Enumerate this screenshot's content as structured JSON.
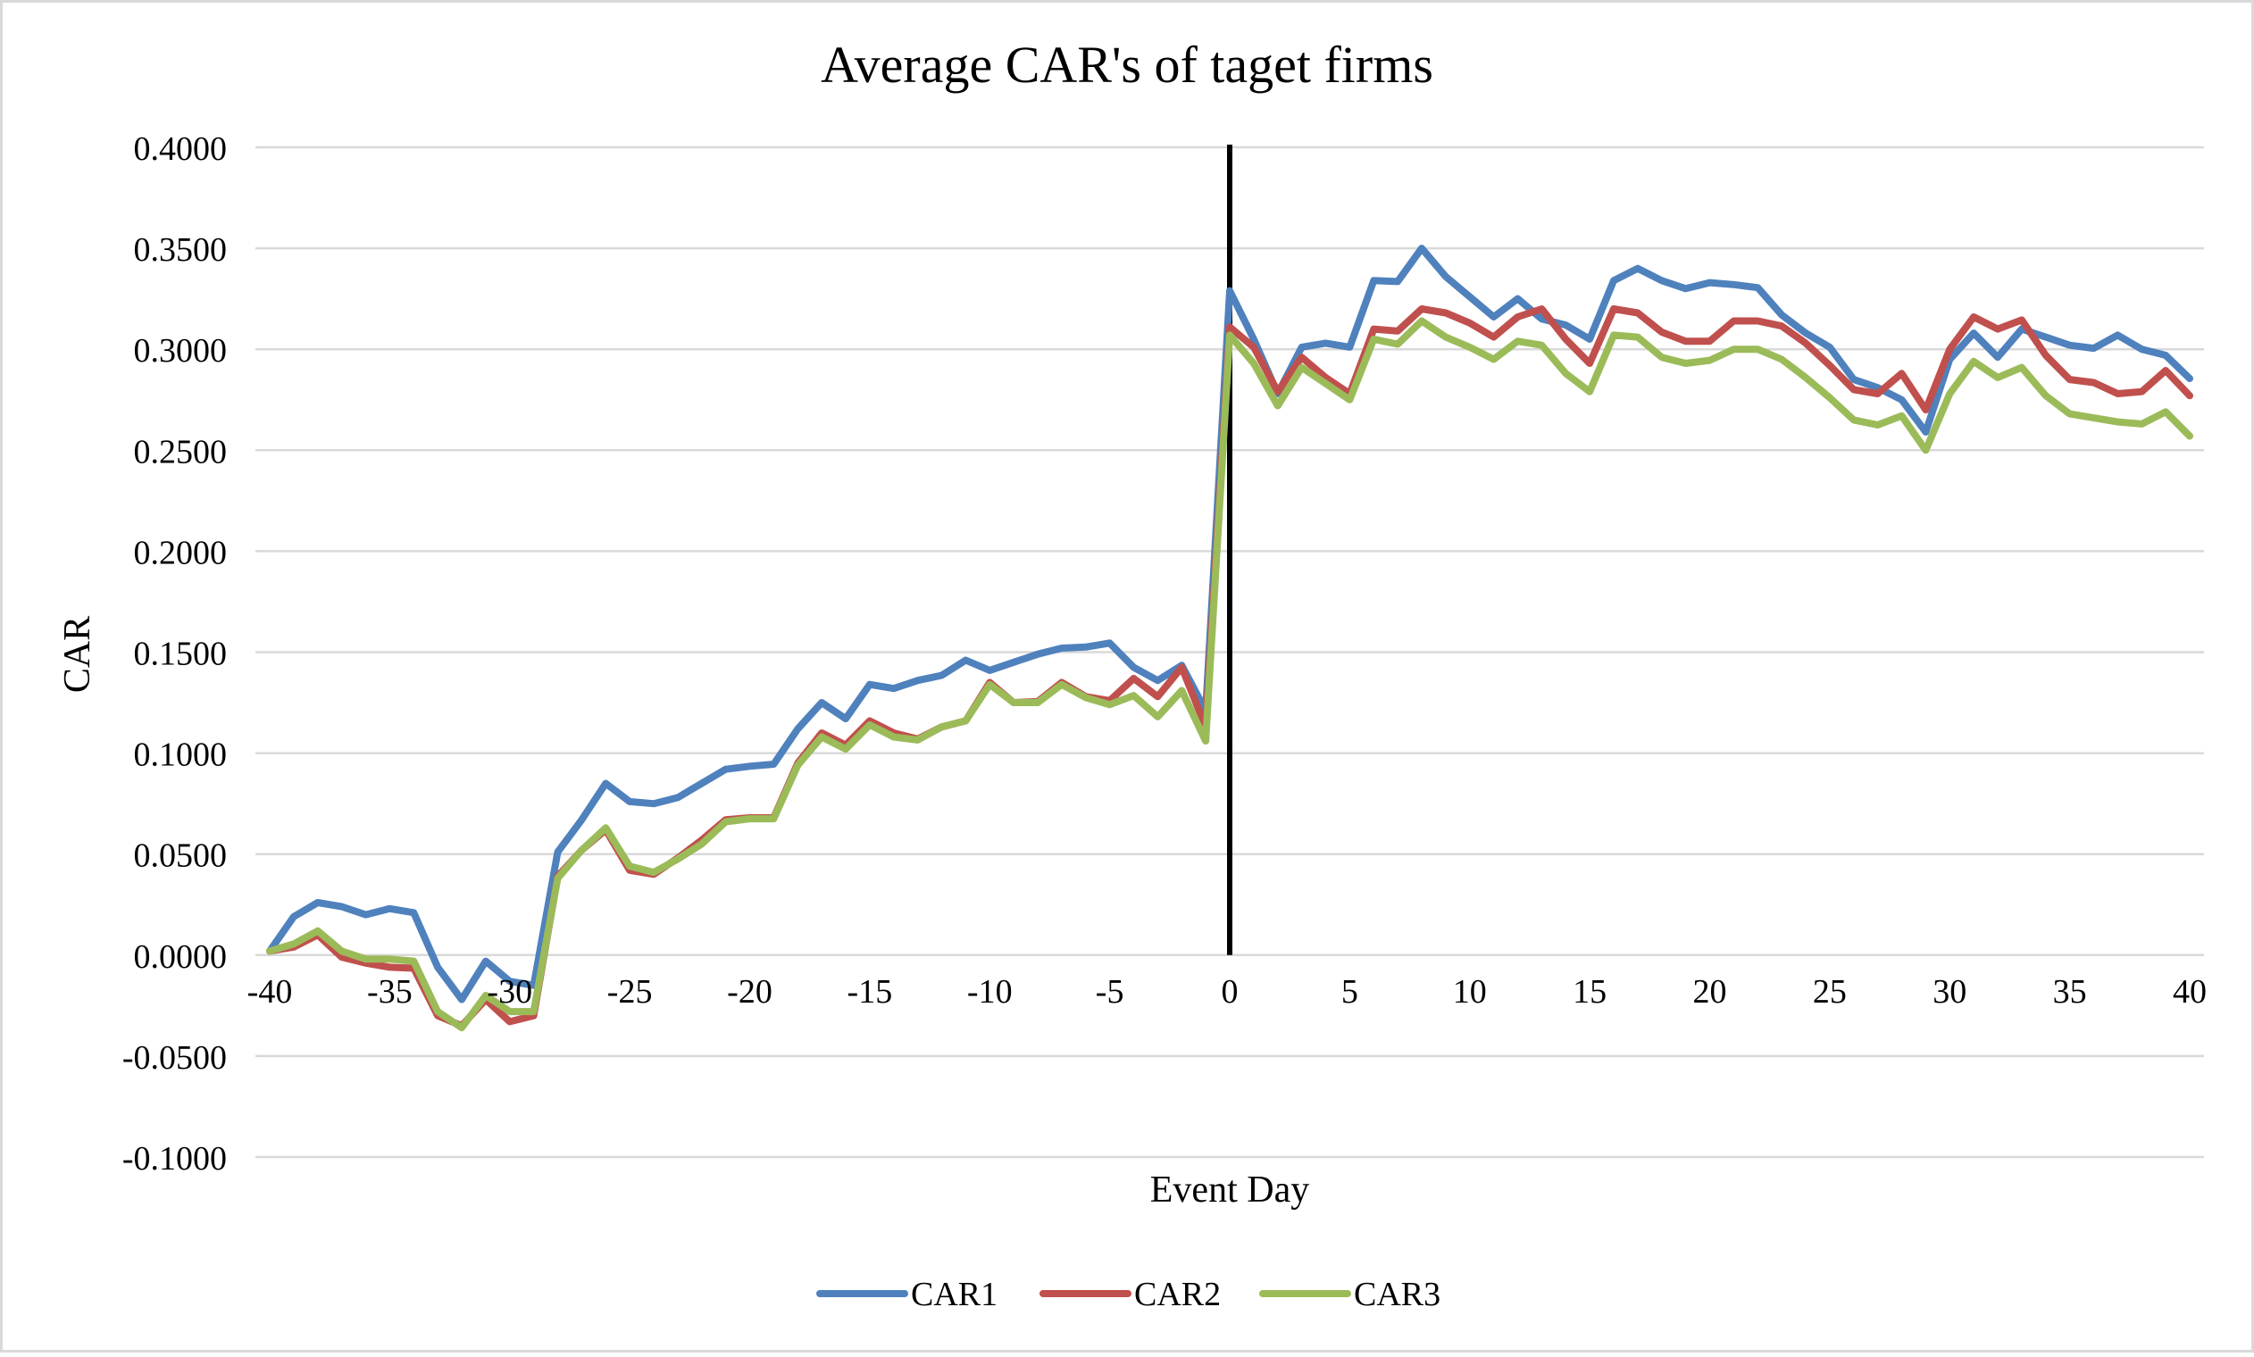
{
  "chart_data": {
    "type": "line",
    "title": "Average CAR's of taget firms",
    "xlabel": "Event Day",
    "ylabel": "CAR",
    "xlim": [
      -40,
      40
    ],
    "ylim": [
      -0.1,
      0.4
    ],
    "x_ticks": [
      -40,
      -35,
      -30,
      -25,
      -20,
      -15,
      -10,
      -5,
      0,
      5,
      10,
      15,
      20,
      25,
      30,
      35,
      40
    ],
    "x_tick_labels": [
      "-40",
      "-35",
      "-30",
      "-25",
      "-20",
      "-15",
      "-10",
      "-5",
      "0",
      "5",
      "10",
      "15",
      "20",
      "25",
      "30",
      "35",
      "40"
    ],
    "y_ticks": [
      0.4,
      0.35,
      0.3,
      0.25,
      0.2,
      0.15,
      0.1,
      0.05,
      0.0,
      -0.05,
      -0.1
    ],
    "y_tick_labels": [
      "0.4000",
      "0.3500",
      "0.3000",
      "0.2500",
      "0.2000",
      "0.1500",
      "0.1000",
      "0.0500",
      "0.0000",
      "-0.0500",
      "-0.1000"
    ],
    "grid": "horizontal",
    "legend_position": "bottom",
    "event_marker_x": 0,
    "x": [
      -40,
      -39,
      -38,
      -37,
      -36,
      -35,
      -34,
      -33,
      -32,
      -31,
      -30,
      -29,
      -28,
      -27,
      -26,
      -25,
      -24,
      -23,
      -22,
      -21,
      -20,
      -19,
      -18,
      -17,
      -16,
      -15,
      -14,
      -13,
      -12,
      -11,
      -10,
      -9,
      -8,
      -7,
      -6,
      -5,
      -4,
      -3,
      -2,
      -1,
      0,
      1,
      2,
      3,
      4,
      5,
      6,
      7,
      8,
      9,
      10,
      11,
      12,
      13,
      14,
      15,
      16,
      17,
      18,
      19,
      20,
      21,
      22,
      23,
      24,
      25,
      26,
      27,
      28,
      29,
      30,
      31,
      32,
      33,
      34,
      35,
      36,
      37,
      38,
      39,
      40
    ],
    "series": [
      {
        "name": "CAR1",
        "color": "#4f81bd",
        "values": [
          0.002,
          0.019,
          0.026,
          0.024,
          0.02,
          0.023,
          0.021,
          -0.006,
          -0.022,
          -0.003,
          -0.013,
          -0.015,
          0.051,
          0.067,
          0.085,
          0.076,
          0.075,
          0.078,
          0.085,
          0.092,
          0.0935,
          0.0945,
          0.112,
          0.125,
          0.117,
          0.134,
          0.132,
          0.136,
          0.1385,
          0.146,
          0.141,
          0.145,
          0.149,
          0.152,
          0.1525,
          0.1545,
          0.1425,
          0.136,
          0.1435,
          0.121,
          0.329,
          0.305,
          0.278,
          0.301,
          0.303,
          0.301,
          0.334,
          0.3335,
          0.35,
          0.336,
          0.326,
          0.316,
          0.325,
          0.315,
          0.312,
          0.305,
          0.334,
          0.34,
          0.334,
          0.33,
          0.333,
          0.332,
          0.3305,
          0.317,
          0.308,
          0.301,
          0.285,
          0.281,
          0.275,
          0.259,
          0.295,
          0.308,
          0.296,
          0.31,
          0.306,
          0.302,
          0.3005,
          0.307,
          0.3,
          0.297,
          0.2855
        ]
      },
      {
        "name": "CAR2",
        "color": "#c0504d",
        "values": [
          0.002,
          0.004,
          0.01,
          -0.001,
          -0.004,
          -0.006,
          -0.0065,
          -0.03,
          -0.035,
          -0.022,
          -0.033,
          -0.03,
          0.039,
          0.052,
          0.062,
          0.042,
          0.04,
          0.048,
          0.057,
          0.067,
          0.068,
          0.068,
          0.095,
          0.11,
          0.104,
          0.116,
          0.11,
          0.107,
          0.113,
          0.116,
          0.135,
          0.125,
          0.1255,
          0.135,
          0.128,
          0.126,
          0.137,
          0.128,
          0.1425,
          0.113,
          0.311,
          0.301,
          0.279,
          0.296,
          0.286,
          0.278,
          0.31,
          0.309,
          0.32,
          0.318,
          0.313,
          0.306,
          0.316,
          0.32,
          0.305,
          0.293,
          0.32,
          0.318,
          0.3085,
          0.304,
          0.304,
          0.314,
          0.314,
          0.3115,
          0.303,
          0.292,
          0.28,
          0.278,
          0.288,
          0.27,
          0.3,
          0.316,
          0.31,
          0.3145,
          0.297,
          0.285,
          0.2835,
          0.278,
          0.279,
          0.2895,
          0.277
        ]
      },
      {
        "name": "CAR3",
        "color": "#9bbb59",
        "values": [
          0.002,
          0.0055,
          0.012,
          0.002,
          -0.002,
          -0.002,
          -0.003,
          -0.028,
          -0.036,
          -0.02,
          -0.028,
          -0.028,
          0.038,
          0.052,
          0.063,
          0.044,
          0.041,
          0.0475,
          0.055,
          0.066,
          0.0675,
          0.0675,
          0.094,
          0.108,
          0.102,
          0.114,
          0.108,
          0.1065,
          0.113,
          0.116,
          0.134,
          0.125,
          0.125,
          0.134,
          0.1275,
          0.124,
          0.1285,
          0.118,
          0.131,
          0.106,
          0.307,
          0.293,
          0.272,
          0.291,
          0.283,
          0.275,
          0.305,
          0.3025,
          0.314,
          0.306,
          0.301,
          0.295,
          0.304,
          0.302,
          0.288,
          0.279,
          0.307,
          0.306,
          0.296,
          0.293,
          0.2945,
          0.3,
          0.3,
          0.295,
          0.286,
          0.276,
          0.265,
          0.2625,
          0.267,
          0.25,
          0.278,
          0.294,
          0.286,
          0.291,
          0.277,
          0.268,
          0.266,
          0.264,
          0.263,
          0.269,
          0.257
        ]
      }
    ]
  }
}
